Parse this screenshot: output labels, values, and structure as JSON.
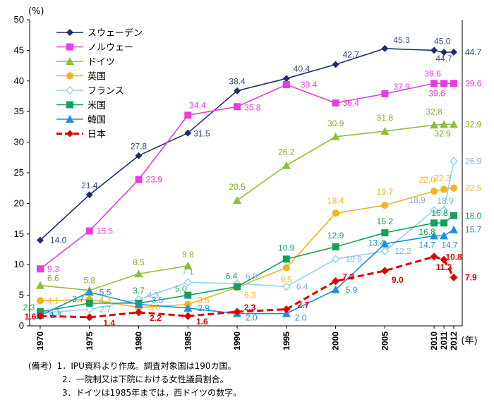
{
  "chart_data": {
    "type": "line",
    "y_unit": "(%)",
    "x_unit": "(年)",
    "ylim": [
      0,
      50
    ],
    "yticks": [
      0,
      5,
      10,
      15,
      20,
      25,
      30,
      35,
      40,
      45,
      50
    ],
    "x": [
      "1970",
      "1975",
      "1980",
      "1985",
      "1990",
      "1995",
      "2000",
      "2005",
      "2010",
      "2011",
      "2012"
    ],
    "grid": false,
    "legend_position": "top-left",
    "series": [
      {
        "name": "スウェーデン",
        "color": "#1f2f6b",
        "marker": "diamond",
        "dashed": false,
        "values": [
          14.0,
          21.4,
          27.8,
          31.5,
          38.4,
          40.4,
          42.7,
          45.3,
          45.0,
          44.7,
          44.7
        ]
      },
      {
        "name": "ノルウェー",
        "color": "#e83ce0",
        "marker": "square",
        "dashed": false,
        "values": [
          9.3,
          15.5,
          23.9,
          34.4,
          35.8,
          39.4,
          36.4,
          37.9,
          39.6,
          39.6,
          39.6
        ]
      },
      {
        "name": "ドイツ",
        "color": "#8ebf3c",
        "marker": "triangle",
        "dashed": false,
        "values": [
          6.6,
          5.8,
          8.5,
          9.8,
          20.5,
          26.2,
          30.9,
          31.8,
          32.8,
          32.9,
          32.9
        ],
        "segment_break_after_index": 3
      },
      {
        "name": "英国",
        "color": "#f3b21f",
        "marker": "circle",
        "dashed": false,
        "values": [
          4.1,
          4.3,
          3.0,
          3.5,
          6.3,
          9.5,
          18.4,
          19.7,
          22.0,
          22.3,
          22.5
        ]
      },
      {
        "name": "フランス",
        "color": "#8fd3ec",
        "marker": "diamond-open",
        "dashed": false,
        "values": [
          2.1,
          2.7,
          4.3,
          7.1,
          6.9,
          6.4,
          10.9,
          12.2,
          18.9,
          18.9,
          26.9
        ]
      },
      {
        "name": "米国",
        "color": "#14a05a",
        "marker": "square",
        "dashed": false,
        "values": [
          2.3,
          3.7,
          3.7,
          5.0,
          6.4,
          10.9,
          12.9,
          15.2,
          16.8,
          16.8,
          18.0
        ]
      },
      {
        "name": "韓国",
        "color": "#1d8fe0",
        "marker": "triangle",
        "dashed": false,
        "values": [
          1.7,
          5.5,
          3.5,
          2.9,
          2.0,
          2.0,
          5.9,
          13.4,
          14.7,
          14.7,
          15.7
        ]
      },
      {
        "name": "日本",
        "color": "#e00000",
        "marker": "diamond",
        "dashed": true,
        "values": [
          1.6,
          1.4,
          2.2,
          1.6,
          2.3,
          2.7,
          7.3,
          9.0,
          11.3,
          10.8,
          7.9
        ]
      }
    ],
    "data_labels": [
      {
        "s": 0,
        "i": 0,
        "text": "14.0",
        "dx": 14,
        "dy": 4,
        "anchor": "start"
      },
      {
        "s": 0,
        "i": 1,
        "text": "21.4",
        "dx": 0,
        "dy": -9,
        "anchor": "middle"
      },
      {
        "s": 0,
        "i": 2,
        "text": "27.8",
        "dx": 0,
        "dy": -9,
        "anchor": "middle"
      },
      {
        "s": 0,
        "i": 3,
        "text": "31.5",
        "dx": 8,
        "dy": 5,
        "anchor": "start"
      },
      {
        "s": 0,
        "i": 4,
        "text": "38.4",
        "dx": 0,
        "dy": -9,
        "anchor": "middle"
      },
      {
        "s": 0,
        "i": 5,
        "text": "40.4",
        "dx": 10,
        "dy": -10,
        "anchor": "start"
      },
      {
        "s": 0,
        "i": 6,
        "text": "42.7",
        "dx": 10,
        "dy": -10,
        "anchor": "start"
      },
      {
        "s": 0,
        "i": 7,
        "text": "45.3",
        "dx": 12,
        "dy": -8,
        "anchor": "start"
      },
      {
        "s": 0,
        "i": 8,
        "text": "45.0",
        "dx": 0,
        "dy": -9,
        "anchor": "start"
      },
      {
        "s": 0,
        "i": 9,
        "text": "44.7",
        "dx": 0,
        "dy": 13,
        "anchor": "middle"
      },
      {
        "s": 0,
        "i": 10,
        "text": "44.7",
        "dx": 16,
        "dy": 4,
        "anchor": "start"
      },
      {
        "s": 1,
        "i": 0,
        "text": "9.3",
        "dx": 10,
        "dy": 4,
        "anchor": "start"
      },
      {
        "s": 1,
        "i": 1,
        "text": "15.5",
        "dx": 10,
        "dy": 4,
        "anchor": "start"
      },
      {
        "s": 1,
        "i": 2,
        "text": "23.9",
        "dx": 10,
        "dy": 4,
        "anchor": "start"
      },
      {
        "s": 1,
        "i": 3,
        "text": "34.4",
        "dx": 2,
        "dy": -10,
        "anchor": "start"
      },
      {
        "s": 1,
        "i": 4,
        "text": "35.8",
        "dx": 10,
        "dy": 5,
        "anchor": "start"
      },
      {
        "s": 1,
        "i": 5,
        "text": "39.4",
        "dx": 20,
        "dy": 4,
        "anchor": "start"
      },
      {
        "s": 1,
        "i": 6,
        "text": "36.4",
        "dx": 10,
        "dy": 4,
        "anchor": "start"
      },
      {
        "s": 1,
        "i": 7,
        "text": "37.9",
        "dx": 12,
        "dy": -6,
        "anchor": "start"
      },
      {
        "s": 1,
        "i": 8,
        "text": "39.6",
        "dx": -2,
        "dy": -10,
        "anchor": "middle"
      },
      {
        "s": 1,
        "i": 9,
        "text": "39.6",
        "dx": -10,
        "dy": 18,
        "anchor": "middle"
      },
      {
        "s": 1,
        "i": 10,
        "text": "39.6",
        "dx": 16,
        "dy": 4,
        "anchor": "start"
      },
      {
        "s": 2,
        "i": 0,
        "text": "6.6",
        "dx": 10,
        "dy": -6,
        "anchor": "start"
      },
      {
        "s": 2,
        "i": 1,
        "text": "5.8",
        "dx": 0,
        "dy": -10,
        "anchor": "middle"
      },
      {
        "s": 2,
        "i": 2,
        "text": "8.5",
        "dx": 0,
        "dy": -12,
        "anchor": "middle"
      },
      {
        "s": 2,
        "i": 3,
        "text": "9.8",
        "dx": 0,
        "dy": -12,
        "anchor": "middle"
      },
      {
        "s": 2,
        "i": 4,
        "text": "20.5",
        "dx": 0,
        "dy": -15,
        "anchor": "middle"
      },
      {
        "s": 2,
        "i": 5,
        "text": "26.2",
        "dx": 0,
        "dy": -15,
        "anchor": "middle"
      },
      {
        "s": 2,
        "i": 6,
        "text": "30.9",
        "dx": 0,
        "dy": -15,
        "anchor": "middle"
      },
      {
        "s": 2,
        "i": 7,
        "text": "31.8",
        "dx": 0,
        "dy": -15,
        "anchor": "middle"
      },
      {
        "s": 2,
        "i": 8,
        "text": "32.8",
        "dx": 0,
        "dy": -15,
        "anchor": "middle"
      },
      {
        "s": 2,
        "i": 9,
        "text": "32.9",
        "dx": -2,
        "dy": 17,
        "anchor": "middle"
      },
      {
        "s": 2,
        "i": 10,
        "text": "32.9",
        "dx": 16,
        "dy": 4,
        "anchor": "start"
      },
      {
        "s": 3,
        "i": 0,
        "text": "4.1",
        "dx": 10,
        "dy": 4,
        "anchor": "start"
      },
      {
        "s": 3,
        "i": 1,
        "text": "4.3",
        "dx": 14,
        "dy": 4,
        "anchor": "start"
      },
      {
        "s": 3,
        "i": 2,
        "text": "3.0",
        "dx": 14,
        "dy": 4,
        "anchor": "start"
      },
      {
        "s": 3,
        "i": 3,
        "text": "3.5",
        "dx": 14,
        "dy": -2,
        "anchor": "start"
      },
      {
        "s": 3,
        "i": 4,
        "text": "6.3",
        "dx": 10,
        "dy": 15,
        "anchor": "start"
      },
      {
        "s": 3,
        "i": 5,
        "text": "9.5",
        "dx": 0,
        "dy": 21,
        "anchor": "middle"
      },
      {
        "s": 3,
        "i": 6,
        "text": "18.4",
        "dx": 0,
        "dy": -14,
        "anchor": "middle"
      },
      {
        "s": 3,
        "i": 7,
        "text": "19.7",
        "dx": 0,
        "dy": -15,
        "anchor": "middle"
      },
      {
        "s": 3,
        "i": 8,
        "text": "22.0",
        "dx": -10,
        "dy": -12,
        "anchor": "middle"
      },
      {
        "s": 3,
        "i": 9,
        "text": "22.3",
        "dx": -2,
        "dy": -12,
        "anchor": "middle"
      },
      {
        "s": 3,
        "i": 10,
        "text": "22.5",
        "dx": 16,
        "dy": 4,
        "anchor": "start"
      },
      {
        "s": 4,
        "i": 0,
        "text": "2.1",
        "dx": 12,
        "dy": 3,
        "anchor": "start"
      },
      {
        "s": 4,
        "i": 1,
        "text": "2.7",
        "dx": 14,
        "dy": 4,
        "anchor": "start"
      },
      {
        "s": 4,
        "i": 2,
        "text": "4.3",
        "dx": 12,
        "dy": -2,
        "anchor": "start"
      },
      {
        "s": 4,
        "i": 3,
        "text": "7.1",
        "dx": 0,
        "dy": -11,
        "anchor": "middle"
      },
      {
        "s": 4,
        "i": 4,
        "text": "6.9",
        "dx": 12,
        "dy": -6,
        "anchor": "start"
      },
      {
        "s": 4,
        "i": 5,
        "text": "6.4",
        "dx": 14,
        "dy": 4,
        "anchor": "start"
      },
      {
        "s": 4,
        "i": 6,
        "text": "10.9",
        "dx": 14,
        "dy": 4,
        "anchor": "start"
      },
      {
        "s": 4,
        "i": 7,
        "text": "12.2",
        "dx": 14,
        "dy": 4,
        "anchor": "start"
      },
      {
        "s": 4,
        "i": 8,
        "text": "18.9",
        "dx": -24,
        "dy": -10,
        "anchor": "middle"
      },
      {
        "s": 4,
        "i": 9,
        "text": "18.9",
        "dx": 2,
        "dy": -9,
        "anchor": "middle"
      },
      {
        "s": 4,
        "i": 10,
        "text": "26.9",
        "dx": 16,
        "dy": 4,
        "anchor": "start"
      },
      {
        "s": 5,
        "i": 0,
        "text": "2.3",
        "dx": -16,
        "dy": -2,
        "anchor": "middle"
      },
      {
        "s": 5,
        "i": 1,
        "text": "3.7",
        "dx": -16,
        "dy": -2,
        "anchor": "middle"
      },
      {
        "s": 5,
        "i": 2,
        "text": "3.7",
        "dx": 0,
        "dy": -14,
        "anchor": "middle"
      },
      {
        "s": 5,
        "i": 3,
        "text": "5.0",
        "dx": -10,
        "dy": -5,
        "anchor": "middle"
      },
      {
        "s": 5,
        "i": 4,
        "text": "6.4",
        "dx": -8,
        "dy": -11,
        "anchor": "middle"
      },
      {
        "s": 5,
        "i": 5,
        "text": "10.9",
        "dx": 0,
        "dy": -12,
        "anchor": "middle"
      },
      {
        "s": 5,
        "i": 6,
        "text": "12.9",
        "dx": 0,
        "dy": -12,
        "anchor": "middle"
      },
      {
        "s": 5,
        "i": 7,
        "text": "15.2",
        "dx": 0,
        "dy": -12,
        "anchor": "middle"
      },
      {
        "s": 5,
        "i": 8,
        "text": "16.8",
        "dx": -10,
        "dy": 17,
        "anchor": "middle"
      },
      {
        "s": 5,
        "i": 9,
        "text": "16.8",
        "dx": -6,
        "dy": -10,
        "anchor": "middle"
      },
      {
        "s": 5,
        "i": 10,
        "text": "18.0",
        "dx": 16,
        "dy": 4,
        "anchor": "start"
      },
      {
        "s": 6,
        "i": 0,
        "text": "1.7",
        "dx": 14,
        "dy": 4,
        "anchor": "start"
      },
      {
        "s": 6,
        "i": 1,
        "text": "5.5",
        "dx": 14,
        "dy": 4,
        "anchor": "start"
      },
      {
        "s": 6,
        "i": 2,
        "text": "3.5",
        "dx": 18,
        "dy": -2,
        "anchor": "start"
      },
      {
        "s": 6,
        "i": 3,
        "text": "2.9",
        "dx": 14,
        "dy": 4,
        "anchor": "start"
      },
      {
        "s": 6,
        "i": 4,
        "text": "2.0",
        "dx": 12,
        "dy": 10,
        "anchor": "start"
      },
      {
        "s": 6,
        "i": 5,
        "text": "2.0",
        "dx": 12,
        "dy": 10,
        "anchor": "start"
      },
      {
        "s": 6,
        "i": 6,
        "text": "5.9",
        "dx": 14,
        "dy": 4,
        "anchor": "start"
      },
      {
        "s": 6,
        "i": 7,
        "text": "13.4",
        "dx": -12,
        "dy": 3,
        "anchor": "middle"
      },
      {
        "s": 6,
        "i": 8,
        "text": "14.7",
        "dx": -10,
        "dy": 17,
        "anchor": "middle"
      },
      {
        "s": 6,
        "i": 9,
        "text": "14.7",
        "dx": 8,
        "dy": 17,
        "anchor": "middle"
      },
      {
        "s": 6,
        "i": 10,
        "text": "15.7",
        "dx": 16,
        "dy": 4,
        "anchor": "start"
      },
      {
        "s": 7,
        "i": 0,
        "text": "1.6",
        "dx": -14,
        "dy": 5,
        "anchor": "middle"
      },
      {
        "s": 7,
        "i": 1,
        "text": "1.4",
        "dx": 28,
        "dy": 12,
        "anchor": "middle"
      },
      {
        "s": 7,
        "i": 2,
        "text": "2.2",
        "dx": 24,
        "dy": 12,
        "anchor": "middle"
      },
      {
        "s": 7,
        "i": 3,
        "text": "1.6",
        "dx": 20,
        "dy": 12,
        "anchor": "middle"
      },
      {
        "s": 7,
        "i": 4,
        "text": "2.3",
        "dx": 18,
        "dy": -2,
        "anchor": "middle"
      },
      {
        "s": 7,
        "i": 5,
        "text": "2.7",
        "dx": 24,
        "dy": -2,
        "anchor": "middle"
      },
      {
        "s": 7,
        "i": 6,
        "text": "7.3",
        "dx": 18,
        "dy": -2,
        "anchor": "middle"
      },
      {
        "s": 7,
        "i": 7,
        "text": "9.0",
        "dx": 18,
        "dy": 17,
        "anchor": "middle"
      },
      {
        "s": 7,
        "i": 8,
        "text": "11.3",
        "dx": 14,
        "dy": 19,
        "anchor": "middle"
      },
      {
        "s": 7,
        "i": 9,
        "text": "10.8",
        "dx": 14,
        "dy": 0,
        "anchor": "middle"
      },
      {
        "s": 7,
        "i": 10,
        "text": "7.9",
        "dx": 16,
        "dy": 4,
        "anchor": "start"
      }
    ]
  },
  "notes": [
    "(備考）1．IPU資料より作成。調査対象国は190カ国。",
    "　　　　2．一院制又は下院における女性議員割合。",
    "　　　　3．ドイツは1985年までは，西ドイツの数字。"
  ]
}
